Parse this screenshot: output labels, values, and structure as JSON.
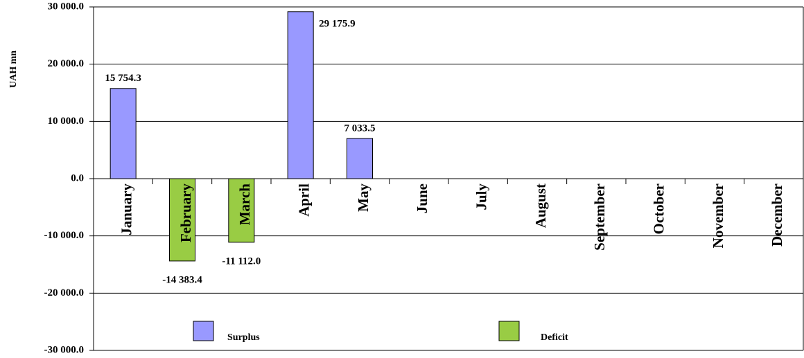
{
  "chart_data": {
    "type": "bar",
    "y_axis_label": "UAH mn",
    "categories": [
      "January",
      "February",
      "March",
      "April",
      "May",
      "June",
      "July",
      "August",
      "September",
      "October",
      "November",
      "December"
    ],
    "series": [
      {
        "name": "Surplus",
        "color": "#9999ff",
        "values": [
          15754.3,
          null,
          null,
          29175.9,
          7033.5,
          null,
          null,
          null,
          null,
          null,
          null,
          null
        ],
        "value_labels": [
          "15 754.3",
          null,
          null,
          "29 175.9",
          "7 033.5",
          null,
          null,
          null,
          null,
          null,
          null,
          null
        ]
      },
      {
        "name": "Deficit",
        "color": "#99cc44",
        "values": [
          null,
          -14383.4,
          -11112.0,
          null,
          null,
          null,
          null,
          null,
          null,
          null,
          null,
          null
        ],
        "value_labels": [
          null,
          "-14 383.4",
          "-11 112.0",
          null,
          null,
          null,
          null,
          null,
          null,
          null,
          null,
          null
        ]
      }
    ],
    "ylim": [
      -30000,
      30000
    ],
    "yticks": [
      {
        "value": -30000,
        "label": "-30 000.0"
      },
      {
        "value": -20000,
        "label": "-20 000.0"
      },
      {
        "value": -10000,
        "label": "-10 000.0"
      },
      {
        "value": 0,
        "label": "0.0"
      },
      {
        "value": 10000,
        "label": "10 000.0"
      },
      {
        "value": 20000,
        "label": "20 000.0"
      },
      {
        "value": 30000,
        "label": "30 000.0"
      }
    ],
    "grid": true,
    "legend": "bottom"
  }
}
